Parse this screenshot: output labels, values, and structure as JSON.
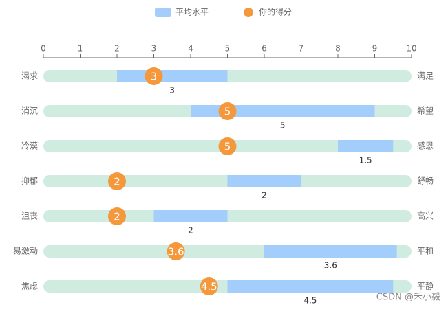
{
  "chart_data": {
    "type": "range-bar",
    "categories": [
      "渴求",
      "消沉",
      "冷漠",
      "抑郁",
      "沮丧",
      "易激动",
      "焦虑"
    ],
    "right_labels": [
      "满足",
      "希望",
      "感恩",
      "舒畅",
      "高兴",
      "平和",
      "平静"
    ],
    "series": [
      {
        "name": "平均水平",
        "color": "#a3cdfb",
        "start": [
          2,
          4,
          8,
          5,
          3,
          6,
          5
        ],
        "values": [
          3,
          5,
          1.5,
          2,
          2,
          3.6,
          4.5
        ]
      },
      {
        "name": "你的得分",
        "color": "#f5973b",
        "values": [
          3,
          5,
          5,
          2,
          2,
          3.6,
          4.5
        ]
      }
    ],
    "xlim": [
      0,
      10
    ],
    "xticks": [
      0,
      1,
      2,
      3,
      4,
      5,
      6,
      7,
      8,
      9,
      10
    ],
    "track_color": "#d0ebe0",
    "watermark": "CSDN @禾小毅"
  }
}
